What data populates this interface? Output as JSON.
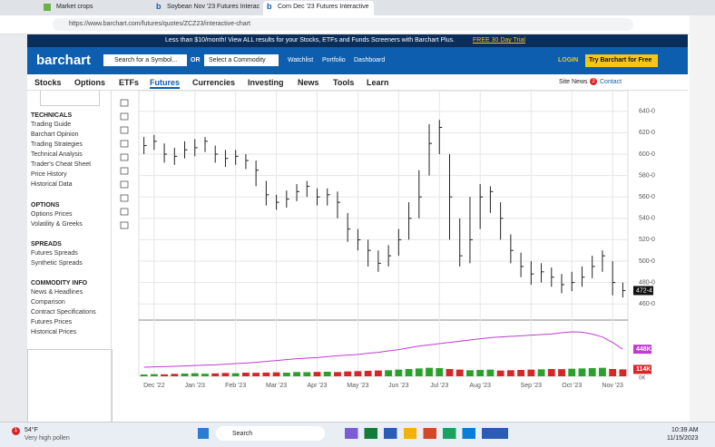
{
  "browser": {
    "tabs": [
      "Market crops",
      "Soybean Nov '23 Futures Interac",
      "Corn Dec '23 Futures Interactive"
    ],
    "url": "https://www.barchart.com/futures/quotes/ZCZ23/interactive-chart"
  },
  "banner": {
    "text": "Less than $10/month! View ALL results for your Stocks, ETFs and Funds Screeners with Barchart Plus.",
    "link": "FREE 30 Day Trial"
  },
  "header": {
    "logo": "barchart",
    "search": "Search for a Symbol...",
    "or": "OR",
    "select": "Select a Commodity",
    "links": [
      "Watchlist",
      "Portfolio",
      "Dashboard"
    ],
    "login": "LOGIN",
    "cta": "Try Barchart for Free"
  },
  "nav": {
    "items": [
      "Stocks",
      "Options",
      "ETFs",
      "Futures",
      "Currencies",
      "Investing",
      "News",
      "Tools",
      "Learn"
    ],
    "site_news": "Site News",
    "badge": "2",
    "contact": "Contact"
  },
  "sidebar": [
    {
      "title": "TECHNICALS",
      "links": [
        "Trading Guide",
        "Barchart Opinion",
        "Trading Strategies",
        "Technical Analysis",
        "Trader's Cheat Sheet",
        "Price History",
        "Historical Data"
      ]
    },
    {
      "title": "OPTIONS",
      "links": [
        "Options Prices",
        "Volatility & Greeks"
      ]
    },
    {
      "title": "SPREADS",
      "links": [
        "Futures Spreads",
        "Synthetic Spreads"
      ]
    },
    {
      "title": "COMMODITY INFO",
      "links": [
        "News & Headlines",
        "Comparison",
        "Contract Specifications",
        "Futures Prices",
        "Historical Prices"
      ]
    }
  ],
  "chart_data": [
    {
      "type": "ohlc",
      "color": "#222222",
      "grid": true,
      "categories": [
        null,
        "Dec '22",
        null,
        null,
        null,
        "Jan '23",
        null,
        null,
        null,
        "Feb '23",
        null,
        null,
        null,
        "Mar '23",
        null,
        null,
        null,
        "Apr '23",
        null,
        null,
        null,
        "May '23",
        null,
        null,
        null,
        "Jun '23",
        null,
        null,
        null,
        "Jul '23",
        null,
        null,
        null,
        "Aug '23",
        null,
        null,
        null,
        null,
        "Sep '23",
        null,
        null,
        null,
        "Oct '23",
        null,
        null,
        null,
        "Nov '23",
        null
      ],
      "high": [
        616,
        618,
        610,
        606,
        612,
        614,
        616,
        608,
        604,
        604,
        600,
        594,
        575,
        562,
        566,
        572,
        575,
        568,
        568,
        565,
        545,
        530,
        520,
        510,
        515,
        530,
        555,
        585,
        628,
        632,
        600,
        540,
        560,
        572,
        570,
        555,
        525,
        508,
        500,
        498,
        494,
        488,
        490,
        495,
        505,
        510,
        500,
        480
      ],
      "low": [
        600,
        604,
        592,
        590,
        596,
        598,
        602,
        592,
        588,
        590,
        586,
        570,
        552,
        548,
        550,
        556,
        560,
        552,
        552,
        540,
        518,
        510,
        495,
        490,
        495,
        505,
        520,
        540,
        580,
        600,
        520,
        495,
        498,
        530,
        545,
        520,
        498,
        485,
        478,
        480,
        476,
        470,
        472,
        476,
        484,
        490,
        468,
        466
      ],
      "close": [
        608,
        612,
        600,
        598,
        604,
        606,
        612,
        600,
        596,
        598,
        594,
        585,
        562,
        555,
        558,
        565,
        570,
        560,
        562,
        555,
        530,
        520,
        510,
        498,
        505,
        520,
        540,
        560,
        610,
        625,
        560,
        505,
        520,
        560,
        565,
        540,
        510,
        495,
        488,
        490,
        485,
        478,
        480,
        485,
        495,
        505,
        480,
        472.5
      ],
      "value_labels": [
        null,
        null,
        null,
        null,
        null,
        null,
        null,
        null,
        null,
        null,
        null,
        null,
        null,
        null,
        null,
        null,
        null,
        null,
        null,
        null,
        null,
        null,
        null,
        null,
        null,
        null,
        null,
        null,
        null,
        null,
        null,
        null,
        null,
        null,
        null,
        null,
        null,
        null,
        null,
        null,
        null,
        null,
        null,
        null,
        null,
        null,
        null,
        "472-4"
      ],
      "ylim": [
        450,
        650
      ],
      "yticks": [
        {
          "value": 460,
          "label": "460-0"
        },
        {
          "value": 480,
          "label": "480-0"
        },
        {
          "value": 500,
          "label": "500-0"
        },
        {
          "value": 520,
          "label": "520-0"
        },
        {
          "value": 540,
          "label": "540-0"
        },
        {
          "value": 560,
          "label": "560-0"
        },
        {
          "value": 580,
          "label": "580-0"
        },
        {
          "value": 600,
          "label": "600-0"
        },
        {
          "value": 620,
          "label": "620-0"
        },
        {
          "value": 640,
          "label": "640-0"
        }
      ]
    },
    {
      "type": "volume",
      "ylim": [
        0,
        900
      ],
      "yticks": [
        {
          "value": 0,
          "label": "0K"
        }
      ],
      "series": [
        {
          "type": "bar",
          "up_color": "#2ca02c",
          "down_color": "#d62728",
          "values": [
            30,
            35,
            32,
            40,
            45,
            50,
            42,
            48,
            55,
            50,
            60,
            58,
            62,
            65,
            60,
            70,
            68,
            72,
            75,
            70,
            80,
            85,
            90,
            95,
            100,
            110,
            120,
            130,
            140,
            135,
            120,
            110,
            100,
            105,
            110,
            95,
            100,
            105,
            110,
            115,
            120,
            118,
            125,
            130,
            135,
            140,
            120,
            114
          ],
          "value_labels": [
            null,
            null,
            null,
            null,
            null,
            null,
            null,
            null,
            null,
            null,
            null,
            null,
            null,
            null,
            null,
            null,
            null,
            null,
            null,
            null,
            null,
            null,
            null,
            null,
            null,
            null,
            null,
            null,
            null,
            null,
            null,
            null,
            null,
            null,
            null,
            null,
            null,
            null,
            null,
            null,
            null,
            null,
            null,
            null,
            null,
            null,
            null,
            "114K"
          ]
        },
        {
          "type": "line",
          "color": "#c03cd0",
          "values": [
            150,
            155,
            160,
            165,
            170,
            178,
            185,
            190,
            200,
            210,
            220,
            230,
            245,
            260,
            275,
            290,
            300,
            310,
            325,
            340,
            350,
            360,
            380,
            395,
            420,
            440,
            470,
            500,
            520,
            540,
            560,
            580,
            600,
            620,
            640,
            650,
            660,
            670,
            680,
            690,
            700,
            720,
            735,
            730,
            700,
            650,
            560,
            448
          ],
          "value_labels": [
            null,
            null,
            null,
            null,
            null,
            null,
            null,
            null,
            null,
            null,
            null,
            null,
            null,
            null,
            null,
            null,
            null,
            null,
            null,
            null,
            null,
            null,
            null,
            null,
            null,
            null,
            null,
            null,
            null,
            null,
            null,
            null,
            null,
            null,
            null,
            null,
            null,
            null,
            null,
            null,
            null,
            null,
            null,
            null,
            null,
            null,
            null,
            "448K"
          ]
        }
      ]
    }
  ],
  "taskbar": {
    "temp": "54°F",
    "weather": "Very high pollen",
    "badge": "1",
    "search": "Search",
    "time": "10:39 AM",
    "date": "11/15/2023"
  }
}
